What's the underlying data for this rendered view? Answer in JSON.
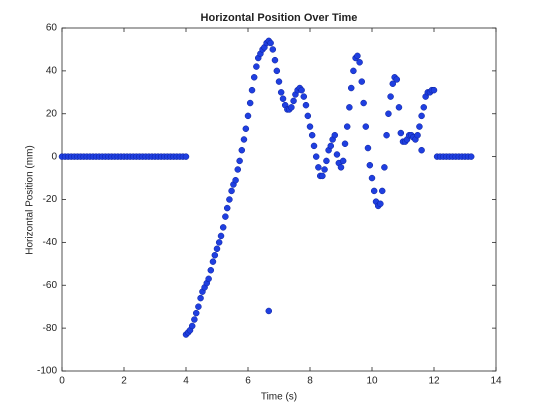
{
  "chart_data": {
    "type": "scatter",
    "title": "Horizontal Position Over Time",
    "x_label": "Time (s)",
    "y_label": "Horizontal Position (mm)",
    "color": "#1f3fe0",
    "xlim": [
      0,
      14
    ],
    "xticks": [
      0,
      2,
      4,
      6,
      8,
      10,
      12,
      14
    ],
    "ylim": [
      -100,
      60
    ],
    "yticks": [
      -100,
      -80,
      -60,
      -40,
      -20,
      0,
      20,
      40,
      60
    ],
    "grid": false,
    "x": [
      0,
      0.1,
      0.2,
      0.3,
      0.4,
      0.5,
      0.6,
      0.7,
      0.8,
      0.9,
      1,
      1.1,
      1.2,
      1.3,
      1.4,
      1.5,
      1.6,
      1.7,
      1.8,
      1.9,
      2,
      2.1,
      2.2,
      2.3,
      2.4,
      2.5,
      2.6,
      2.7,
      2.8,
      2.9,
      3,
      3.1,
      3.2,
      3.3,
      3.4,
      3.5,
      3.6,
      3.7,
      3.8,
      3.9,
      4,
      4.0,
      4.07,
      4.13,
      4.2,
      4.27,
      4.33,
      4.4,
      4.47,
      4.53,
      4.6,
      4.67,
      4.73,
      4.8,
      4.87,
      4.93,
      5.0,
      5.07,
      5.13,
      5.2,
      5.27,
      5.33,
      5.4,
      5.47,
      5.53,
      5.6,
      5.67,
      5.73,
      5.8,
      5.87,
      5.93,
      6.0,
      6.07,
      6.13,
      6.2,
      6.27,
      6.33,
      6.4,
      6.47,
      6.53,
      6.6,
      6.67,
      6.73,
      6.8,
      6.87,
      6.93,
      7.0,
      7.07,
      7.13,
      7.2,
      7.27,
      7.33,
      7.4,
      7.47,
      7.53,
      7.6,
      7.67,
      7.73,
      7.8,
      7.87,
      7.93,
      8.0,
      8.07,
      8.13,
      8.2,
      8.27,
      8.33,
      8.4,
      8.47,
      8.53,
      8.6,
      8.67,
      8.73,
      8.8,
      8.87,
      8.93,
      9.0,
      9.07,
      9.13,
      9.2,
      9.27,
      9.33,
      9.4,
      9.47,
      9.53,
      9.6,
      9.67,
      9.73,
      9.8,
      9.87,
      9.93,
      10.0,
      10.07,
      10.13,
      10.2,
      10.27,
      10.33,
      10.4,
      10.47,
      10.53,
      10.6,
      10.67,
      10.73,
      10.8,
      10.87,
      10.93,
      11.0,
      11.07,
      11.13,
      11.2,
      11.27,
      11.33,
      11.4,
      11.47,
      11.53,
      11.6,
      11.67,
      11.73,
      11.8,
      11.87,
      11.93,
      12.0,
      6.67,
      11.6,
      12.1,
      12.2,
      12.3,
      12.4,
      12.5,
      12.6,
      12.7,
      12.8,
      12.9,
      13.0,
      13.1,
      13.2
    ],
    "y": [
      0,
      0,
      0,
      0,
      0,
      0,
      0,
      0,
      0,
      0,
      0,
      0,
      0,
      0,
      0,
      0,
      0,
      0,
      0,
      0,
      0,
      0,
      0,
      0,
      0,
      0,
      0,
      0,
      0,
      0,
      0,
      0,
      0,
      0,
      0,
      0,
      0,
      0,
      0,
      0,
      0,
      -83,
      -82,
      -81,
      -79,
      -76,
      -73,
      -70,
      -66,
      -63,
      -61,
      -59,
      -57,
      -53,
      -49,
      -46,
      -43,
      -40,
      -37,
      -33,
      -28,
      -24,
      -20,
      -16,
      -13,
      -11,
      -6,
      -2,
      3,
      8,
      13,
      19,
      25,
      31,
      37,
      42,
      46,
      48,
      50,
      51,
      53,
      54,
      53,
      50,
      45,
      40,
      35,
      30,
      27,
      24,
      22,
      22,
      23,
      26,
      29,
      31,
      32,
      31,
      28,
      24,
      19,
      14,
      10,
      5,
      0,
      -5,
      -9,
      -9,
      -6,
      -2,
      3,
      5,
      8,
      10,
      1,
      -3,
      -5,
      -2,
      6,
      14,
      23,
      32,
      40,
      46,
      47,
      44,
      35,
      25,
      14,
      4,
      -4,
      -10,
      -16,
      -21,
      -23,
      -22,
      -16,
      -5,
      10,
      20,
      28,
      34,
      37,
      36,
      23,
      11,
      7,
      7,
      8,
      10,
      10,
      9,
      8,
      10,
      14,
      19,
      23,
      28,
      30,
      30,
      31,
      31,
      -72,
      3,
      0,
      0,
      0,
      0,
      0,
      0,
      0,
      0,
      0,
      0,
      0,
      0
    ]
  }
}
